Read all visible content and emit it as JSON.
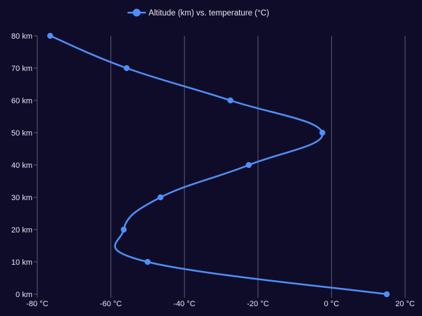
{
  "colors": {
    "background": "#0f0c29",
    "grid": "#5a5a78",
    "text": "#e6e6f0",
    "series": "#4f8ff7"
  },
  "chart_data": {
    "type": "line",
    "orientation": "vertical-profile",
    "title": "",
    "xlabel": "",
    "ylabel": "",
    "grid": {
      "x": true,
      "y": false
    },
    "legend": {
      "position": "top-center",
      "marker": "circle-line"
    },
    "x_ticks": [
      "-80 °C",
      "-60 °C",
      "-40 °C",
      "-20 °C",
      "0 °C",
      "20 °C"
    ],
    "x_tick_values": [
      -80,
      -60,
      -40,
      -20,
      0,
      20
    ],
    "y_ticks": [
      "0 km",
      "10 km",
      "20 km",
      "30 km",
      "40 km",
      "50 km",
      "60 km",
      "70 km",
      "80 km"
    ],
    "y_tick_values": [
      0,
      10,
      20,
      30,
      40,
      50,
      60,
      70,
      80
    ],
    "xlim": [
      -80,
      20
    ],
    "ylim": [
      0,
      80
    ],
    "series": [
      {
        "name": "Altitude (km) vs. temperature (°C)",
        "color": "#4f8ff7",
        "points": [
          {
            "x": 15,
            "y": 0
          },
          {
            "x": -50,
            "y": 10
          },
          {
            "x": -56.5,
            "y": 20
          },
          {
            "x": -46.5,
            "y": 30
          },
          {
            "x": -22.5,
            "y": 40
          },
          {
            "x": -2.5,
            "y": 50
          },
          {
            "x": -27.5,
            "y": 60
          },
          {
            "x": -55.7,
            "y": 70
          },
          {
            "x": -76.5,
            "y": 80
          }
        ]
      }
    ]
  }
}
